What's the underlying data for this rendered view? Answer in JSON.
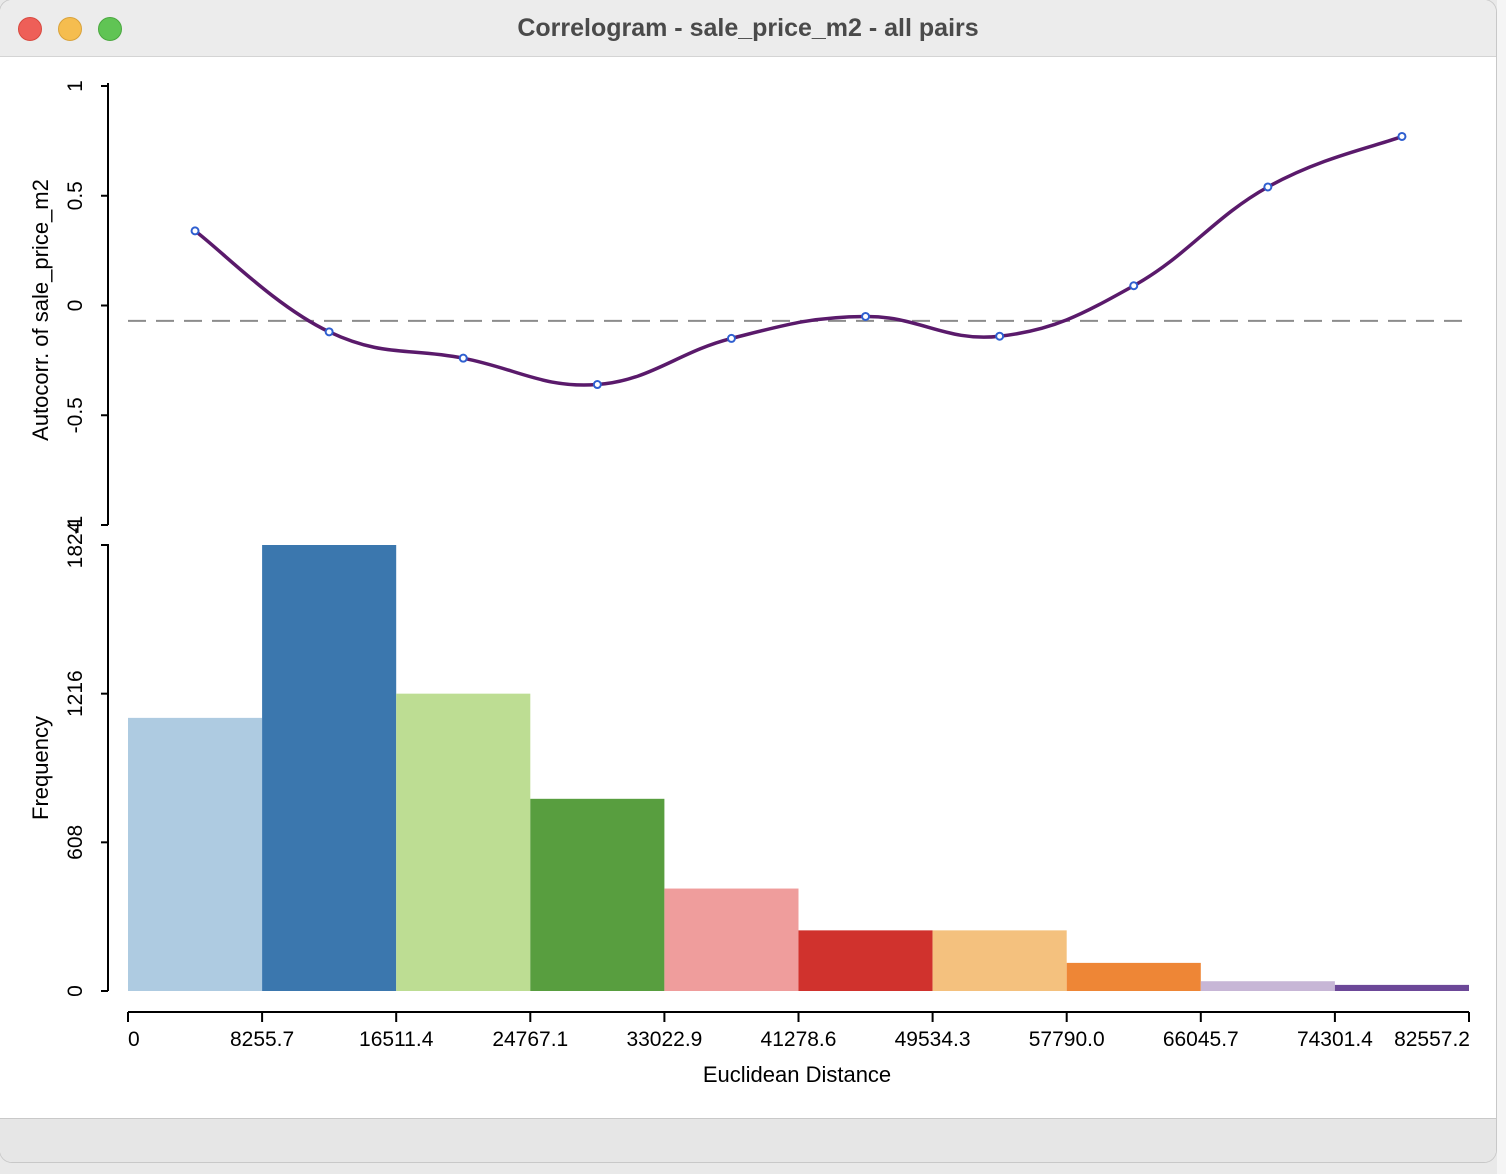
{
  "window": {
    "title": "Correlogram - sale_price_m2 - all pairs"
  },
  "colors": {
    "curve": "#5a1a6b",
    "points": "#2f5fd0",
    "dashed": "#8c8c8c",
    "bars": [
      "#aecbe1",
      "#3b77ae",
      "#bddd93",
      "#589e3f",
      "#ef9d9c",
      "#d0322d",
      "#f4c17e",
      "#ee8636",
      "#c7b6d6",
      "#6c4898"
    ]
  },
  "chart_data": [
    {
      "type": "line",
      "ylabel": "Autocorr. of sale_price_m2",
      "ylim": [
        -1,
        1
      ],
      "yticks": [
        "-1",
        "-0.5",
        "0",
        "0.5",
        "1"
      ],
      "reference_line": -0.07,
      "x": [
        4127.9,
        12383.6,
        20639.3,
        28895.0,
        37150.7,
        45406.4,
        53662.1,
        61917.8,
        70173.5,
        78429.3
      ],
      "values": [
        0.34,
        -0.12,
        -0.24,
        -0.36,
        -0.15,
        -0.05,
        -0.14,
        0.09,
        0.54,
        0.77
      ]
    },
    {
      "type": "bar",
      "xlabel": "Euclidean Distance",
      "ylabel": "Frequency",
      "ylim": [
        0,
        1824
      ],
      "yticks": [
        "0",
        "608",
        "1216",
        "1824"
      ],
      "xticks": [
        "0",
        "8255.7",
        "16511.4",
        "24767.1",
        "33022.9",
        "41278.6",
        "49534.3",
        "57790.0",
        "66045.7",
        "74301.4",
        "82557.2"
      ],
      "bin_edges": [
        0,
        8255.7,
        16511.4,
        24767.1,
        33022.9,
        41278.6,
        49534.3,
        57790.0,
        66045.7,
        74301.4,
        82557.2
      ],
      "values": [
        1117,
        1824,
        1216,
        786,
        419,
        248,
        248,
        115,
        40,
        25
      ]
    }
  ]
}
